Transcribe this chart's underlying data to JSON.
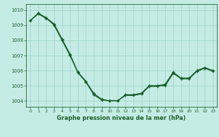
{
  "bg_color": "#c5ece4",
  "grid_color": "#9fd4cb",
  "line_color": "#1a5e2a",
  "lineA": [
    1009.3,
    1009.8,
    1009.5,
    1009.1,
    1008.1,
    1007.1,
    1005.9,
    1005.3,
    1004.5,
    1004.1,
    1004.0,
    1004.0,
    1004.4,
    1004.4,
    1004.5,
    1005.0,
    1005.0,
    1005.1,
    1005.9,
    1005.5,
    1005.5,
    1006.0,
    1006.2,
    1006.0
  ],
  "lineB": [
    1009.3,
    1009.75,
    1009.45,
    1009.05,
    1008.05,
    1007.05,
    1005.85,
    1005.25,
    1004.4,
    1004.05,
    1004.0,
    1004.0,
    1004.35,
    1004.35,
    1004.45,
    1004.95,
    1004.95,
    1005.05,
    1005.85,
    1005.45,
    1005.45,
    1005.95,
    1006.15,
    1005.95
  ],
  "lineC": [
    1009.3,
    1009.8,
    1009.5,
    1009.0,
    1008.0,
    1007.0,
    1005.9,
    1005.3,
    1004.4,
    1004.1,
    1004.0,
    1004.0,
    1004.4,
    1004.4,
    1004.5,
    1005.0,
    1005.0,
    1005.0,
    1005.8,
    1005.5,
    1005.5,
    1006.0,
    1006.2,
    1006.0
  ],
  "ylim": [
    1003.6,
    1010.4
  ],
  "yticks": [
    1004,
    1005,
    1006,
    1007,
    1008,
    1009,
    1010
  ],
  "xlim": [
    -0.5,
    23.5
  ],
  "xticks": [
    0,
    1,
    2,
    3,
    4,
    5,
    6,
    7,
    8,
    9,
    10,
    11,
    12,
    13,
    14,
    15,
    16,
    17,
    18,
    19,
    20,
    21,
    22,
    23
  ],
  "xlabel": "Graphe pression niveau de la mer (hPa)"
}
